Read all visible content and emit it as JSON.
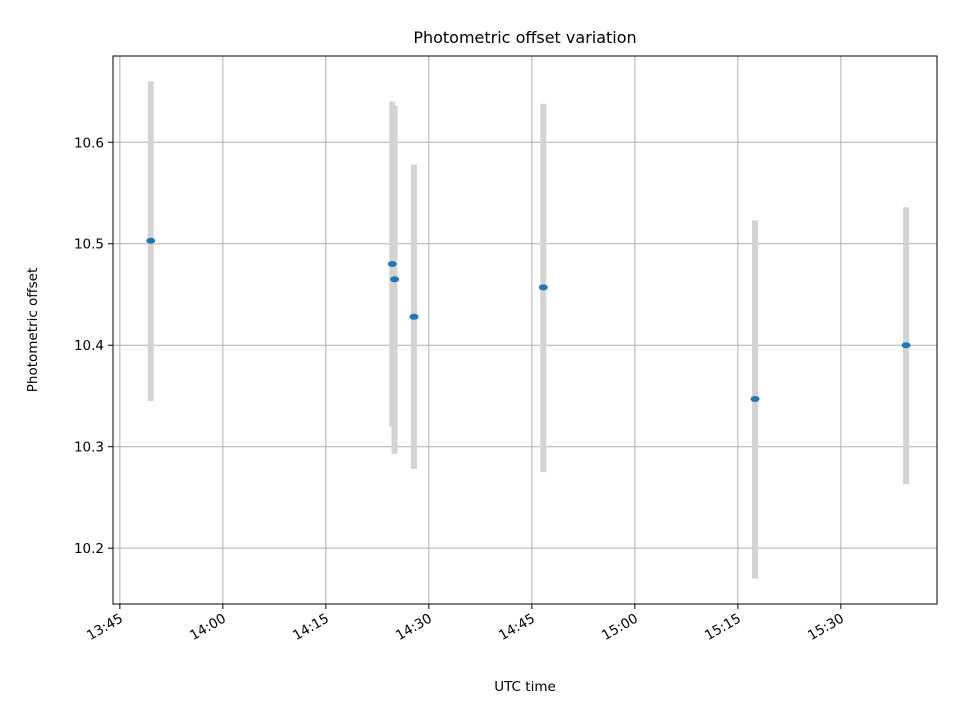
{
  "chart_data": {
    "type": "scatter",
    "title": "Photometric offset variation",
    "xlabel": "UTC time",
    "ylabel": "Photometric offset",
    "grid": true,
    "x_ticks": [
      "13:45",
      "14:00",
      "14:15",
      "14:30",
      "14:45",
      "15:00",
      "15:15",
      "15:30"
    ],
    "y_ticks": [
      10.2,
      10.3,
      10.4,
      10.5,
      10.6
    ],
    "xlim": [
      "13:44",
      "15:44"
    ],
    "ylim": [
      10.145,
      10.685
    ],
    "colors": {
      "point": "#1f77b4",
      "errorbar": "#d3d3d3",
      "grid": "#b0b0b0"
    },
    "points": [
      {
        "x": "13:49:30",
        "y": 10.503,
        "ymin": 10.345,
        "ymax": 10.66
      },
      {
        "x": "14:24:40",
        "y": 10.48,
        "ymin": 10.32,
        "ymax": 10.64
      },
      {
        "x": "14:25:00",
        "y": 10.465,
        "ymin": 10.293,
        "ymax": 10.636
      },
      {
        "x": "14:27:50",
        "y": 10.428,
        "ymin": 10.278,
        "ymax": 10.578
      },
      {
        "x": "14:46:40",
        "y": 10.457,
        "ymin": 10.275,
        "ymax": 10.638
      },
      {
        "x": "15:17:30",
        "y": 10.347,
        "ymin": 10.17,
        "ymax": 10.523
      },
      {
        "x": "15:39:30",
        "y": 10.4,
        "ymin": 10.263,
        "ymax": 10.536
      }
    ]
  }
}
